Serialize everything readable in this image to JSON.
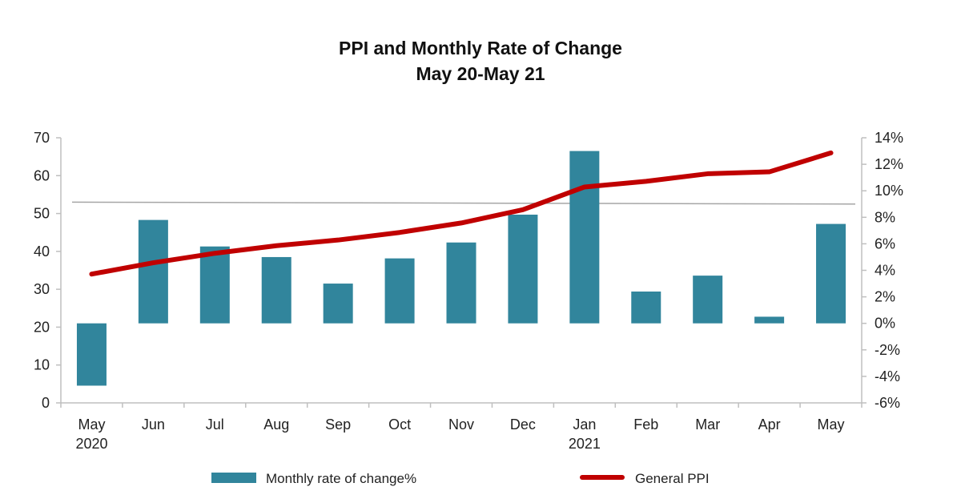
{
  "chart_data": {
    "type": "bar",
    "title": "PPI and Monthly Rate of Change",
    "subtitle": "May 20-May 21",
    "categories": [
      "May\n2020",
      "Jun",
      "Jul",
      "Aug",
      "Sep",
      "Oct",
      "Nov",
      "Dec",
      "Jan\n2021",
      "Feb",
      "Mar",
      "Apr",
      "May"
    ],
    "series": [
      {
        "name": "Monthly rate of change%",
        "type": "bar",
        "axis": "right",
        "color": "#31859c",
        "values": [
          -4.7,
          7.8,
          5.8,
          5.0,
          3.0,
          4.9,
          6.1,
          8.2,
          13.0,
          2.4,
          3.6,
          0.5,
          7.5
        ]
      },
      {
        "name": "General PPI",
        "type": "line",
        "axis": "left",
        "color": "#c00000",
        "values": [
          34.0,
          37.0,
          39.5,
          41.5,
          43.0,
          45.0,
          47.5,
          51.0,
          57.0,
          58.5,
          60.5,
          61.0,
          66.0
        ]
      }
    ],
    "y_left": {
      "min": 0,
      "max": 70,
      "ticks": [
        "0",
        "10",
        "20",
        "30",
        "40",
        "50",
        "60",
        "70"
      ]
    },
    "y_right": {
      "min": -6,
      "max": 14,
      "ticks": [
        "-6%",
        "-4%",
        "-2%",
        "0%",
        "2%",
        "4%",
        "6%",
        "8%",
        "10%",
        "12%",
        "14%"
      ]
    },
    "reference_line": {
      "axis": "left",
      "start": 53,
      "end": 52.5,
      "color": "#a6a6a6"
    },
    "legend_position": "bottom",
    "grid": false
  }
}
